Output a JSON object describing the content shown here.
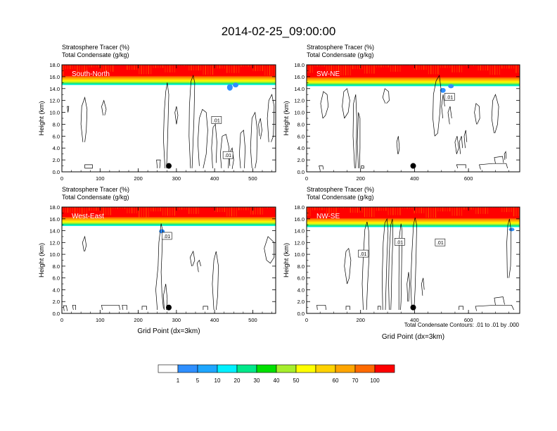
{
  "figure": {
    "title": "2014-02-25_09:00:00",
    "contour_note": "Total Condensate Contours: .01 to .01 by .000",
    "colorbar": {
      "levels": [
        "1",
        "5",
        "10",
        "20",
        "30",
        "40",
        "50",
        "60",
        "70",
        "100"
      ],
      "colors": [
        "#ffffff",
        "#2f8fff",
        "#1ea6ff",
        "#00f0ff",
        "#00e88a",
        "#00e000",
        "#a6ee2c",
        "#ffff00",
        "#ffd200",
        "#ffa500",
        "#ff6a00",
        "#ff0000"
      ]
    }
  },
  "chart_data": [
    {
      "type": "heatmap",
      "panel_label": "South-North",
      "subtitle_line1": "Stratosphere Tracer   (%)",
      "subtitle_line2": "Total Condensate   (g/kg)",
      "xlabel": "",
      "ylabel": "Height (km)",
      "xlim": [
        0,
        560
      ],
      "ylim": [
        0,
        18
      ],
      "xticks": [
        0,
        100,
        200,
        300,
        400,
        500
      ],
      "yticks": [
        "0.0",
        "2.0",
        "4.0",
        "6.0",
        "8.0",
        "10.0",
        "12.0",
        "14.0",
        "16.0",
        "18.0"
      ],
      "tracer_base_km": 14.6,
      "contour_level": ".01",
      "contour_labels": [
        {
          "x": 405,
          "y": 8.6
        },
        {
          "x": 435,
          "y": 2.7
        }
      ],
      "marker": {
        "x": 280,
        "y": 1.0
      }
    },
    {
      "type": "heatmap",
      "panel_label": "SW-NE",
      "subtitle_line1": "Stratosphere Tracer   (%)",
      "subtitle_line2": "Total Condensate   (g/kg)",
      "xlabel": "",
      "ylabel": "Height (km)",
      "xlim": [
        0,
        790
      ],
      "ylim": [
        0,
        18
      ],
      "xticks": [
        0,
        200,
        400,
        600
      ],
      "yticks": [
        "0.0",
        "2.0",
        "4.0",
        "6.0",
        "8.0",
        "10.0",
        "12.0",
        "14.0",
        "16.0",
        "18.0"
      ],
      "tracer_base_km": 14.4,
      "contour_level": ".01",
      "contour_labels": [
        {
          "x": 530,
          "y": 12.5
        }
      ],
      "marker": {
        "x": 395,
        "y": 1.0
      }
    },
    {
      "type": "heatmap",
      "panel_label": "West-East",
      "subtitle_line1": "Stratosphere Tracer   (%)",
      "subtitle_line2": "Total Condensate   (g/kg)",
      "xlabel": "Grid Point (dx=3km)",
      "ylabel": "Height (km)",
      "xlim": [
        0,
        560
      ],
      "ylim": [
        0,
        18
      ],
      "xticks": [
        0,
        100,
        200,
        300,
        400,
        500
      ],
      "yticks": [
        "0.0",
        "2.0",
        "4.0",
        "6.0",
        "8.0",
        "10.0",
        "12.0",
        "14.0",
        "16.0",
        "18.0"
      ],
      "tracer_base_km": 14.8,
      "contour_level": ".01",
      "contour_labels": [
        {
          "x": 275,
          "y": 13.0
        }
      ],
      "marker": {
        "x": 280,
        "y": 1.0
      }
    },
    {
      "type": "heatmap",
      "panel_label": "NW-SE",
      "subtitle_line1": "Stratosphere Tracer   (%)",
      "subtitle_line2": "Total Condensate   (g/kg)",
      "xlabel": "Grid Point (dx=3km)",
      "ylabel": "Height (km)",
      "xlim": [
        0,
        790
      ],
      "ylim": [
        0,
        18
      ],
      "xticks": [
        0,
        200,
        400,
        600
      ],
      "yticks": [
        "0.0",
        "2.0",
        "4.0",
        "6.0",
        "8.0",
        "10.0",
        "12.0",
        "14.0",
        "16.0",
        "18.0"
      ],
      "tracer_base_km": 14.6,
      "contour_level": ".01",
      "contour_labels": [
        {
          "x": 210,
          "y": 10.0
        },
        {
          "x": 345,
          "y": 12.0
        },
        {
          "x": 495,
          "y": 11.9
        }
      ],
      "marker": {
        "x": 395,
        "y": 1.0
      }
    }
  ]
}
